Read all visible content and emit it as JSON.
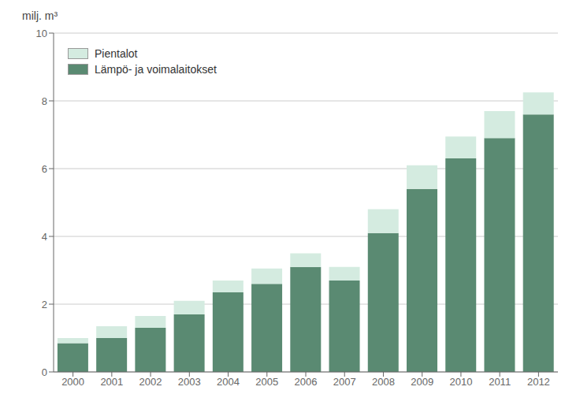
{
  "chart_data": {
    "type": "bar",
    "stacked": true,
    "y_label": "milj. m³",
    "categories": [
      "2000",
      "2001",
      "2002",
      "2003",
      "2004",
      "2005",
      "2006",
      "2007",
      "2008",
      "2009",
      "2010",
      "2011",
      "2012"
    ],
    "series": [
      {
        "name": "Lämpö- ja voimalaitokset",
        "color": "#5a8a72",
        "values": [
          0.85,
          1.0,
          1.3,
          1.7,
          2.35,
          2.6,
          3.1,
          2.7,
          4.1,
          5.4,
          6.3,
          6.9,
          7.6
        ]
      },
      {
        "name": "Pientalot",
        "color": "#d4ebe0",
        "values": [
          0.15,
          0.35,
          0.35,
          0.4,
          0.35,
          0.45,
          0.4,
          0.4,
          0.7,
          0.7,
          0.65,
          0.8,
          0.65
        ]
      }
    ],
    "ylim": [
      0,
      10
    ],
    "yticks": [
      0,
      2,
      4,
      6,
      8,
      10
    ],
    "grid": true,
    "legend": "upper left"
  }
}
